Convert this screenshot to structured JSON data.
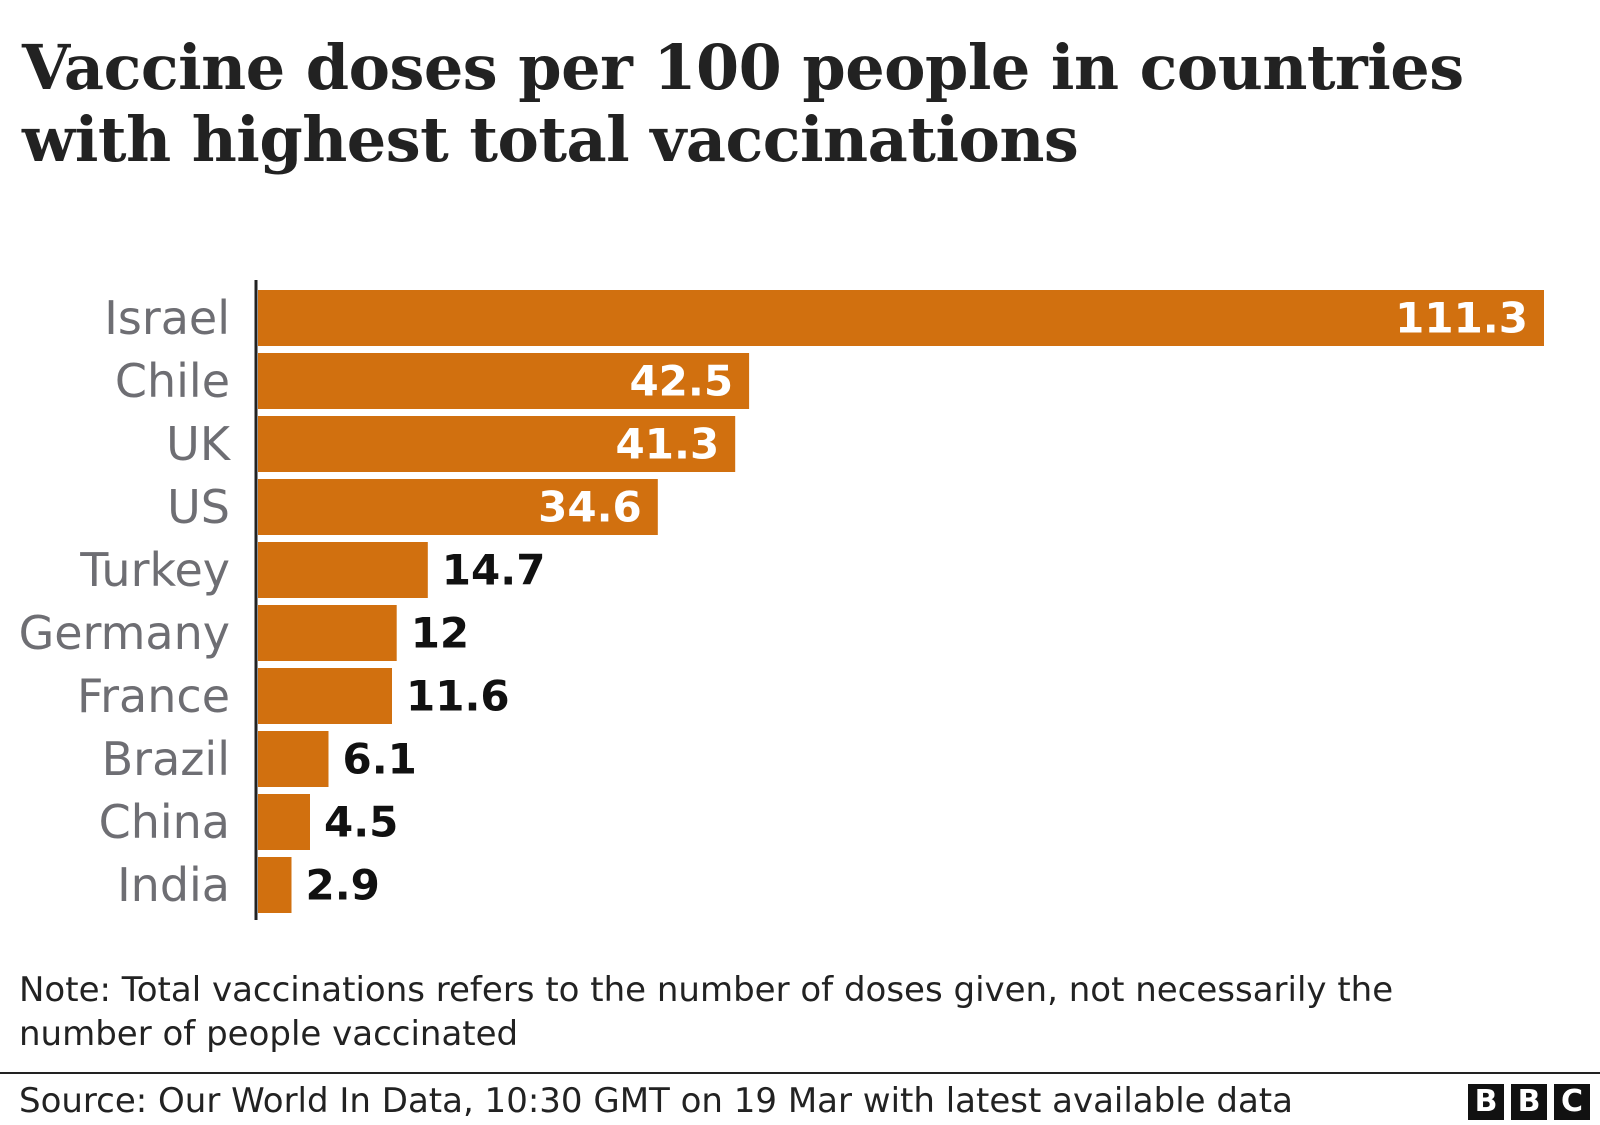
{
  "title": "Vaccine doses per 100 people in countries with highest total vaccinations",
  "note": "Note: Total vaccinations refers to the number of doses given, not necessarily the number of people vaccinated",
  "source": "Source: Our World In Data, 10:30 GMT on 19 Mar with latest available data",
  "logo": {
    "letters": [
      "B",
      "B",
      "C"
    ]
  },
  "colors": {
    "bar": "#d1700f",
    "category_label": "#6e6e73",
    "value_outside": "#111111",
    "value_inside": "#ffffff",
    "axis": "#222222"
  },
  "chart_data": {
    "type": "bar",
    "orientation": "horizontal",
    "categories": [
      "Israel",
      "Chile",
      "UK",
      "US",
      "Turkey",
      "Germany",
      "France",
      "Brazil",
      "China",
      "India"
    ],
    "values": [
      111.3,
      42.5,
      41.3,
      34.6,
      14.7,
      12,
      11.6,
      6.1,
      4.5,
      2.9
    ],
    "value_labels": [
      "111.3",
      "42.5",
      "41.3",
      "34.6",
      "14.7",
      "12",
      "11.6",
      "6.1",
      "4.5",
      "2.9"
    ],
    "title": "Vaccine doses per 100 people in countries with highest total vaccinations",
    "xlabel": "",
    "ylabel": "",
    "xlim": [
      0,
      111.3
    ],
    "grid": false,
    "legend": "none"
  }
}
